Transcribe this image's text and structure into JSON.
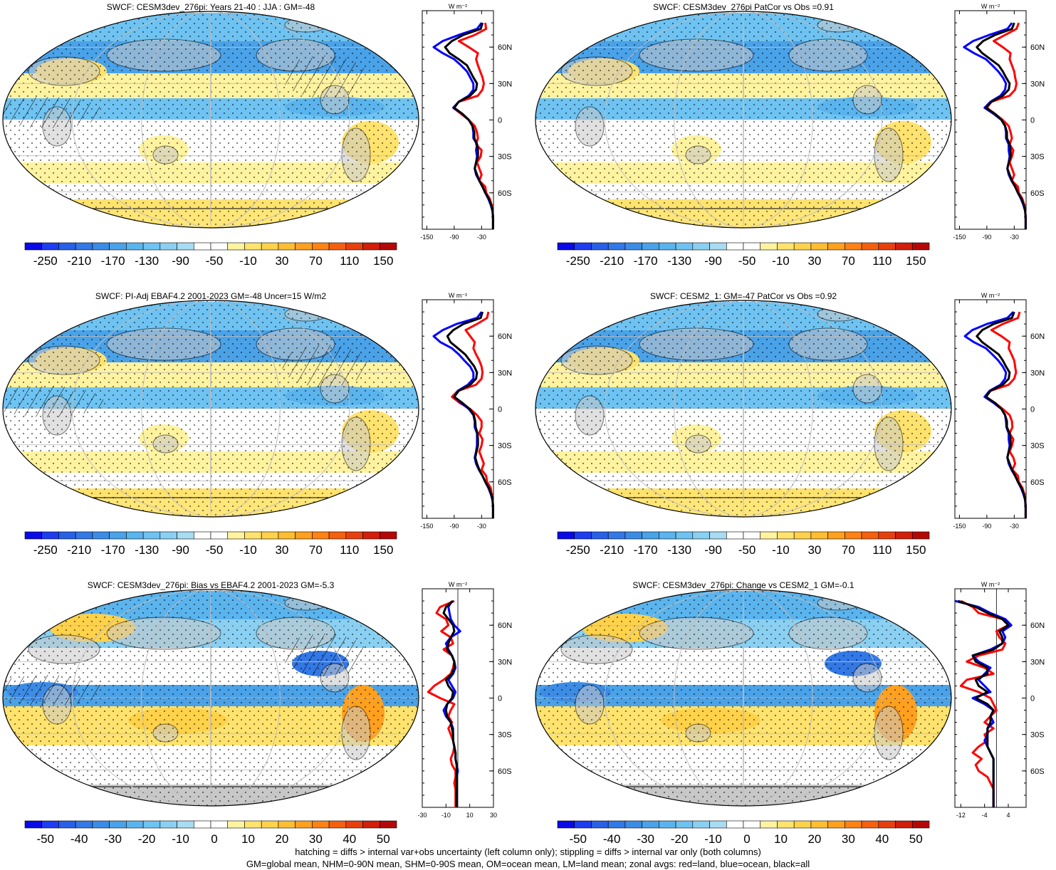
{
  "footer": {
    "line1": "hatching = diffs > internal var+obs uncertainty (left column only); stippling = diffs > internal var only (both columns)",
    "line2": "GM=global mean, NHM=0-90N mean, SHM=0-90S mean, OM=ocean mean, LM=land mean; zonal avgs: red=land, blue=ocean, black=all"
  },
  "colors": {
    "land_line": "#ff0000",
    "ocean_line": "#0000ff",
    "all_line": "#000000",
    "land_mask": "#c8c8c8",
    "palette": [
      "#0a0ae6",
      "#1e3cf0",
      "#2860e6",
      "#3278e6",
      "#3c8ce6",
      "#4aa2e8",
      "#5ab4ee",
      "#6ec3f2",
      "#8ad0f2",
      "#a8dcf2",
      "#ffffff",
      "#ffffff",
      "#fff3a0",
      "#ffe36e",
      "#ffd24a",
      "#ffbe32",
      "#ffa01e",
      "#ff8214",
      "#f5600f",
      "#e6400f",
      "#d21e0a",
      "#b40808"
    ]
  },
  "zonal_axis_label": "W m⁻²",
  "latitude_ticks": [
    "60N",
    "30N",
    "0",
    "30S",
    "60S"
  ],
  "chart_data": [
    {
      "type": "heatmap",
      "title": "SWCF: CESM3dev_276pi: Years 21-40 : JJA : GM=-48",
      "colorbar_labels": [
        "-250",
        "-210",
        "-170",
        "-130",
        "-90",
        "-50",
        "-10",
        "30",
        "70",
        "110",
        "150"
      ],
      "zonal": {
        "xticks": [
          "-150",
          "-90",
          "-30"
        ],
        "xlim": [
          -160,
          -4
        ],
        "lat": [
          80,
          75,
          70,
          65,
          60,
          55,
          50,
          45,
          40,
          35,
          30,
          25,
          20,
          15,
          10,
          5,
          0,
          -5,
          -10,
          -15,
          -20,
          -25,
          -30,
          -35,
          -40,
          -45,
          -50,
          -55,
          -60,
          -65,
          -70,
          -75,
          -80,
          -85,
          -90
        ],
        "land": [
          -22,
          -20,
          -45,
          -80,
          -58,
          -38,
          -42,
          -38,
          -33,
          -28,
          -25,
          -28,
          -38,
          -80,
          -92,
          -75,
          -58,
          -45,
          -40,
          -38,
          -42,
          -30,
          -32,
          -40,
          -35,
          -30,
          -35,
          -22,
          -20,
          -12,
          -8,
          -6,
          -5,
          -5,
          -5
        ],
        "ocean": [
          -30,
          -40,
          -80,
          -115,
          -135,
          -115,
          -90,
          -75,
          -62,
          -55,
          -48,
          -48,
          -58,
          -80,
          -92,
          -72,
          -58,
          -50,
          -48,
          -48,
          -40,
          -42,
          -40,
          -42,
          -45,
          -42,
          -35,
          -28,
          -22,
          -15,
          -10,
          -6,
          -5,
          -5,
          -5
        ],
        "all": [
          -28,
          -32,
          -70,
          -95,
          -110,
          -100,
          -80,
          -62,
          -55,
          -48,
          -40,
          -42,
          -55,
          -80,
          -90,
          -72,
          -58,
          -50,
          -46,
          -46,
          -40,
          -38,
          -38,
          -42,
          -45,
          -40,
          -35,
          -28,
          -22,
          -14,
          -9,
          -6,
          -5,
          -5,
          -5
        ]
      }
    },
    {
      "type": "heatmap",
      "title": "SWCF: CESM3dev_276pi PatCor vs Obs =0.91",
      "colorbar_labels": [
        "-250",
        "-210",
        "-170",
        "-130",
        "-90",
        "-50",
        "-10",
        "30",
        "70",
        "110",
        "150"
      ],
      "zonal": {
        "xticks": [
          "-150",
          "-90",
          "-30"
        ],
        "xlim": [
          -160,
          -4
        ],
        "lat": [
          80,
          75,
          70,
          65,
          60,
          55,
          50,
          45,
          40,
          35,
          30,
          25,
          20,
          15,
          10,
          5,
          0,
          -5,
          -10,
          -15,
          -20,
          -25,
          -30,
          -35,
          -40,
          -45,
          -50,
          -55,
          -60,
          -65,
          -70,
          -75,
          -80,
          -85,
          -90
        ],
        "land": [
          -20,
          -25,
          -50,
          -75,
          -55,
          -38,
          -40,
          -35,
          -30,
          -28,
          -25,
          -28,
          -40,
          -80,
          -90,
          -72,
          -55,
          -42,
          -38,
          -35,
          -40,
          -32,
          -35,
          -40,
          -35,
          -30,
          -35,
          -22,
          -20,
          -12,
          -8,
          -6,
          -5,
          -5,
          -5
        ],
        "ocean": [
          -35,
          -45,
          -85,
          -120,
          -140,
          -118,
          -92,
          -78,
          -65,
          -55,
          -48,
          -50,
          -60,
          -82,
          -95,
          -75,
          -58,
          -50,
          -48,
          -48,
          -42,
          -42,
          -40,
          -42,
          -45,
          -42,
          -36,
          -28,
          -22,
          -15,
          -10,
          -6,
          -5,
          -5,
          -5
        ],
        "all": [
          -30,
          -35,
          -72,
          -98,
          -112,
          -100,
          -82,
          -64,
          -55,
          -48,
          -40,
          -42,
          -55,
          -80,
          -92,
          -72,
          -58,
          -50,
          -46,
          -46,
          -40,
          -38,
          -38,
          -42,
          -45,
          -40,
          -35,
          -28,
          -22,
          -14,
          -9,
          -6,
          -5,
          -5,
          -5
        ]
      }
    },
    {
      "type": "heatmap",
      "title": "SWCF: PI-Adj EBAF4.2 2001-2023 GM=-48 Uncer=15 W/m2",
      "colorbar_labels": [
        "-250",
        "-210",
        "-170",
        "-130",
        "-90",
        "-50",
        "-10",
        "30",
        "70",
        "110",
        "150"
      ],
      "zonal": {
        "xticks": [
          "-150",
          "-90",
          "-30"
        ],
        "xlim": [
          -160,
          -4
        ],
        "lat": [
          80,
          75,
          70,
          65,
          60,
          55,
          50,
          45,
          40,
          35,
          30,
          25,
          20,
          15,
          10,
          5,
          0,
          -5,
          -10,
          -15,
          -20,
          -25,
          -30,
          -35,
          -40,
          -45,
          -50,
          -55,
          -60,
          -65,
          -70,
          -75,
          -80,
          -85,
          -90
        ],
        "land": [
          -15,
          -18,
          -40,
          -65,
          -55,
          -45,
          -48,
          -42,
          -35,
          -30,
          -28,
          -30,
          -42,
          -82,
          -95,
          -78,
          -55,
          -40,
          -30,
          -30,
          -35,
          -28,
          -30,
          -35,
          -30,
          -25,
          -30,
          -20,
          -18,
          -10,
          -8,
          -6,
          -5,
          -5,
          -5
        ],
        "ocean": [
          -30,
          -40,
          -85,
          -115,
          -135,
          -120,
          -95,
          -80,
          -68,
          -55,
          -48,
          -48,
          -60,
          -82,
          -90,
          -75,
          -58,
          -48,
          -45,
          -45,
          -40,
          -40,
          -40,
          -42,
          -45,
          -42,
          -36,
          -28,
          -22,
          -15,
          -10,
          -6,
          -5,
          -5,
          -5
        ],
        "all": [
          -28,
          -32,
          -70,
          -92,
          -105,
          -98,
          -82,
          -66,
          -56,
          -46,
          -40,
          -42,
          -55,
          -80,
          -90,
          -72,
          -56,
          -47,
          -44,
          -43,
          -39,
          -38,
          -38,
          -41,
          -44,
          -40,
          -35,
          -28,
          -22,
          -14,
          -9,
          -6,
          -5,
          -5,
          -5
        ]
      }
    },
    {
      "type": "heatmap",
      "title": "SWCF: CESM2_1: GM=-47 PatCor vs Obs =0.92",
      "colorbar_labels": [
        "-250",
        "-210",
        "-170",
        "-130",
        "-90",
        "-50",
        "-10",
        "30",
        "70",
        "110",
        "150"
      ],
      "zonal": {
        "xticks": [
          "-150",
          "-90",
          "-30"
        ],
        "xlim": [
          -160,
          -4
        ],
        "lat": [
          80,
          75,
          70,
          65,
          60,
          55,
          50,
          45,
          40,
          35,
          30,
          25,
          20,
          15,
          10,
          5,
          0,
          -5,
          -10,
          -15,
          -20,
          -25,
          -30,
          -35,
          -40,
          -45,
          -50,
          -55,
          -60,
          -65,
          -70,
          -75,
          -80,
          -85,
          -90
        ],
        "land": [
          -18,
          -22,
          -55,
          -80,
          -58,
          -40,
          -42,
          -36,
          -30,
          -28,
          -26,
          -30,
          -42,
          -82,
          -92,
          -72,
          -55,
          -40,
          -35,
          -34,
          -40,
          -32,
          -35,
          -40,
          -32,
          -28,
          -34,
          -22,
          -20,
          -12,
          -8,
          -6,
          -5,
          -5,
          -5
        ],
        "ocean": [
          -32,
          -45,
          -90,
          -122,
          -138,
          -118,
          -92,
          -78,
          -65,
          -55,
          -48,
          -50,
          -60,
          -84,
          -95,
          -75,
          -58,
          -50,
          -48,
          -47,
          -42,
          -42,
          -40,
          -42,
          -45,
          -42,
          -36,
          -28,
          -22,
          -15,
          -10,
          -6,
          -5,
          -5,
          -5
        ],
        "all": [
          -30,
          -35,
          -75,
          -100,
          -112,
          -100,
          -82,
          -64,
          -55,
          -48,
          -40,
          -42,
          -55,
          -82,
          -92,
          -72,
          -58,
          -50,
          -46,
          -46,
          -40,
          -38,
          -38,
          -42,
          -45,
          -40,
          -35,
          -28,
          -22,
          -14,
          -9,
          -6,
          -5,
          -5,
          -5
        ]
      }
    },
    {
      "type": "heatmap",
      "title": "SWCF: CESM3dev_276pi: Bias vs EBAF4.2 2001-2023 GM=-5.3",
      "colorbar_labels": [
        "-50",
        "-40",
        "-30",
        "-20",
        "-10",
        "0",
        "10",
        "20",
        "30",
        "40",
        "50"
      ],
      "zonal": {
        "xticks": [
          "-30",
          "-10",
          "10",
          "30"
        ],
        "xlim": [
          -30,
          30
        ],
        "lat": [
          80,
          75,
          70,
          65,
          60,
          55,
          50,
          45,
          40,
          35,
          30,
          25,
          20,
          15,
          10,
          5,
          0,
          -5,
          -10,
          -15,
          -20,
          -25,
          -30,
          -35,
          -40,
          -45,
          -50,
          -55,
          -60,
          -65,
          -70,
          -75,
          -80,
          -85,
          -90
        ],
        "land": [
          -3,
          -15,
          -18,
          -10,
          -8,
          -14,
          -6,
          -4,
          -12,
          -5,
          -3,
          -4,
          -6,
          -12,
          -20,
          -25,
          -15,
          -3,
          -6,
          -8,
          -5,
          -8,
          -6,
          -4,
          -3,
          -4,
          -6,
          -5,
          -2,
          -2,
          -3,
          -2,
          -2,
          -2,
          -2
        ],
        "ocean": [
          -5,
          -8,
          -7,
          -6,
          -3,
          2,
          -6,
          -10,
          -8,
          -5,
          -3,
          -2,
          -4,
          -8,
          -5,
          -2,
          -4,
          -9,
          -12,
          -10,
          -6,
          -4,
          -4,
          -4,
          -3,
          -2,
          -2,
          -1,
          0,
          -1,
          -1,
          -1,
          -1,
          -1,
          -1
        ],
        "all": [
          -4,
          -10,
          -12,
          -8,
          -4,
          -3,
          -6,
          -8,
          -9,
          -5,
          -3,
          -3,
          -5,
          -10,
          -8,
          -4,
          -5,
          -9,
          -10,
          -9,
          -6,
          -5,
          -4,
          -4,
          -3,
          -2,
          -2,
          -1,
          -1,
          -1,
          -1,
          -1,
          -1,
          -1,
          -1
        ]
      }
    },
    {
      "type": "heatmap",
      "title": "SWCF: CESM3dev_276pi: Change vs CESM2_1 GM=-0.1",
      "colorbar_labels": [
        "-50",
        "-40",
        "-30",
        "-20",
        "-10",
        "0",
        "10",
        "20",
        "30",
        "40",
        "50"
      ],
      "zonal": {
        "xticks": [
          "-12",
          "-4",
          "4"
        ],
        "xlim": [
          -14,
          10
        ],
        "lat": [
          80,
          75,
          70,
          65,
          60,
          55,
          50,
          45,
          40,
          35,
          30,
          25,
          20,
          15,
          10,
          5,
          0,
          -5,
          -10,
          -15,
          -20,
          -25,
          -30,
          -35,
          -40,
          -45,
          -50,
          -55,
          -60,
          -65,
          -70,
          -75,
          -80,
          -85,
          -90
        ],
        "land": [
          -12,
          -8,
          -6,
          2,
          4,
          0,
          1,
          3,
          2,
          -6,
          -10,
          -4,
          -1,
          -10,
          -12,
          -6,
          -2,
          -1,
          0,
          -2,
          -4,
          -1,
          -4,
          -3,
          -6,
          -8,
          -5,
          -7,
          -6,
          -3,
          -2,
          -1,
          -1,
          -1,
          -1
        ],
        "ocean": [
          -14,
          -6,
          -2,
          3,
          5,
          2,
          3,
          2,
          -2,
          -8,
          -6,
          -2,
          -4,
          -6,
          -4,
          -2,
          -8,
          -4,
          -1,
          -2,
          -1,
          -3,
          -3,
          -4,
          -3,
          -2,
          -1,
          -1,
          -1,
          -1,
          -1,
          -1,
          -1,
          -1,
          -1
        ],
        "all": [
          -13,
          -7,
          -3,
          2,
          4,
          1,
          2,
          2,
          -1,
          -8,
          -7,
          -3,
          -3,
          -7,
          -6,
          -3,
          -7,
          -3,
          -1,
          -2,
          -2,
          -3,
          -3,
          -3,
          -3,
          -2,
          -1,
          -1,
          -1,
          -1,
          -1,
          -1,
          -1,
          -1,
          -1
        ]
      }
    }
  ]
}
